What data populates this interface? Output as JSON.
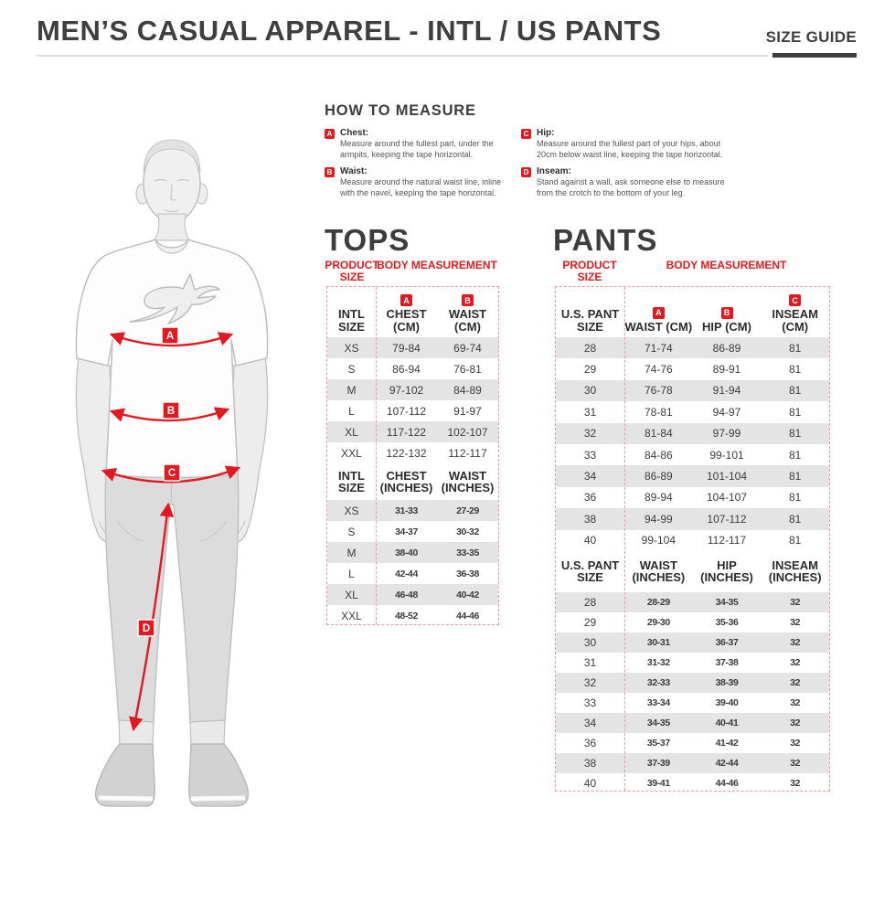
{
  "colors": {
    "accent_red": "#e2191f",
    "heading_dark": "#3d3d3d",
    "row_gray": "#e4e4e4",
    "table_border": "#f19a9a"
  },
  "page": {
    "title": "MEN’S CASUAL APPAREL - INTL / US PANTS",
    "size_guide_label": "SIZE GUIDE"
  },
  "how_to_measure": {
    "title": "HOW TO MEASURE",
    "items": [
      {
        "badge": "A",
        "label": "Chest:",
        "text": "Measure around the fullest part, under the armpits, keeping the tape horizontal."
      },
      {
        "badge": "B",
        "label": "Waist:",
        "text": "Measure around the natural waist line, inline with the navel, keeping the tape horizontal."
      },
      {
        "badge": "C",
        "label": "Hip:",
        "text": "Measure around the fullest part of your hips, about 20cm below waist line, keeping the tape horizontal."
      },
      {
        "badge": "D",
        "label": "Inseam:",
        "text": "Stand against a wall, ask someone else to measure from the crotch to the bottom of your leg."
      }
    ]
  },
  "figure": {
    "markers": [
      "A",
      "B",
      "C",
      "D"
    ]
  },
  "tops": {
    "title": "TOPS",
    "product_size_label": "PRODUCT SIZE",
    "body_measurement_label": "BODY MEASUREMENT",
    "cm": {
      "headers": [
        {
          "badge": "",
          "label": "INTL SIZE"
        },
        {
          "badge": "A",
          "label": "CHEST (CM)"
        },
        {
          "badge": "B",
          "label": "WAIST (CM)"
        }
      ],
      "rows": [
        [
          "XS",
          "79-84",
          "69-74"
        ],
        [
          "S",
          "86-94",
          "76-81"
        ],
        [
          "M",
          "97-102",
          "84-89"
        ],
        [
          "L",
          "107-112",
          "91-97"
        ],
        [
          "XL",
          "117-122",
          "102-107"
        ],
        [
          "XXL",
          "122-132",
          "112-117"
        ]
      ]
    },
    "inches": {
      "headers": [
        {
          "badge": "",
          "label": "INTL SIZE"
        },
        {
          "badge": "",
          "label": "CHEST (INCHES)"
        },
        {
          "badge": "",
          "label": "WAIST (INCHES)"
        }
      ],
      "rows": [
        [
          "XS",
          "31-33",
          "27-29"
        ],
        [
          "S",
          "34-37",
          "30-32"
        ],
        [
          "M",
          "38-40",
          "33-35"
        ],
        [
          "L",
          "42-44",
          "36-38"
        ],
        [
          "XL",
          "46-48",
          "40-42"
        ],
        [
          "XXL",
          "48-52",
          "44-46"
        ]
      ]
    }
  },
  "pants": {
    "title": "PANTS",
    "product_size_label": "PRODUCT SIZE",
    "body_measurement_label": "BODY MEASUREMENT",
    "cm": {
      "headers": [
        {
          "badge": "",
          "label": "U.S. PANT SIZE"
        },
        {
          "badge": "A",
          "label": "WAIST (CM)"
        },
        {
          "badge": "B",
          "label": "HIP (CM)"
        },
        {
          "badge": "C",
          "label": "INSEAM (CM)"
        }
      ],
      "rows": [
        [
          "28",
          "71-74",
          "86-89",
          "81"
        ],
        [
          "29",
          "74-76",
          "89-91",
          "81"
        ],
        [
          "30",
          "76-78",
          "91-94",
          "81"
        ],
        [
          "31",
          "78-81",
          "94-97",
          "81"
        ],
        [
          "32",
          "81-84",
          "97-99",
          "81"
        ],
        [
          "33",
          "84-86",
          "99-101",
          "81"
        ],
        [
          "34",
          "86-89",
          "101-104",
          "81"
        ],
        [
          "36",
          "89-94",
          "104-107",
          "81"
        ],
        [
          "38",
          "94-99",
          "107-112",
          "81"
        ],
        [
          "40",
          "99-104",
          "112-117",
          "81"
        ]
      ]
    },
    "inches": {
      "headers": [
        {
          "badge": "",
          "label": "U.S. PANT SIZE"
        },
        {
          "badge": "",
          "label": "WAIST (INCHES)"
        },
        {
          "badge": "",
          "label": "HIP (INCHES)"
        },
        {
          "badge": "",
          "label": "INSEAM (INCHES)"
        }
      ],
      "rows": [
        [
          "28",
          "28-29",
          "34-35",
          "32"
        ],
        [
          "29",
          "29-30",
          "35-36",
          "32"
        ],
        [
          "30",
          "30-31",
          "36-37",
          "32"
        ],
        [
          "31",
          "31-32",
          "37-38",
          "32"
        ],
        [
          "32",
          "32-33",
          "38-39",
          "32"
        ],
        [
          "33",
          "33-34",
          "39-40",
          "32"
        ],
        [
          "34",
          "34-35",
          "40-41",
          "32"
        ],
        [
          "36",
          "35-37",
          "41-42",
          "32"
        ],
        [
          "38",
          "37-39",
          "42-44",
          "32"
        ],
        [
          "40",
          "39-41",
          "44-46",
          "32"
        ]
      ]
    }
  }
}
